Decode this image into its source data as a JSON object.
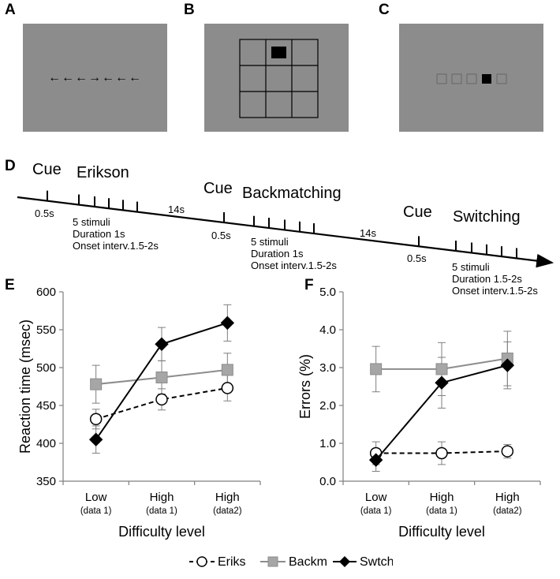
{
  "panels": {
    "A": "A",
    "B": "B",
    "C": "C",
    "D": "D",
    "E": "E",
    "F": "F"
  },
  "panelA": {
    "arrows": "←←←→←←←"
  },
  "colors": {
    "screen_gray": "#8c8c8c",
    "backm_gray": "#a6a6a6",
    "backm_line": "#8c8c8c"
  },
  "timeline": {
    "cue": "Cue",
    "tasks": [
      "Erikson",
      "Backmatching",
      "Switching"
    ],
    "cue_time": "0.5s",
    "gap": "14s",
    "blocks": [
      {
        "lines": [
          "5 stimuli",
          "Duration 1s",
          "Onset interv.1.5-2s"
        ]
      },
      {
        "lines": [
          "5 stimuli",
          "Duration 1s",
          "Onset interv.1.5-2s"
        ]
      },
      {
        "lines": [
          "5 stimuli",
          "Duration 1.5-2s",
          "Onset interv.1.5-2s"
        ]
      }
    ]
  },
  "legend": [
    {
      "name": "Eriks",
      "marker": "circle",
      "style": "dashed"
    },
    {
      "name": "Backm",
      "marker": "square",
      "style": "solid"
    },
    {
      "name": "Swtch",
      "marker": "diamond",
      "style": "solid"
    }
  ],
  "chart_data": [
    {
      "type": "line",
      "panel": "E",
      "categories": [
        [
          "Low",
          "(data 1)"
        ],
        [
          "High",
          "(data 1)"
        ],
        [
          "High",
          "(data2)"
        ]
      ],
      "xlabel": "Difficulty level",
      "ylabel": "Reaction time (msec)",
      "ylim": [
        350,
        600
      ],
      "yticks": [
        "350",
        "400",
        "450",
        "500",
        "550",
        "600"
      ],
      "series": [
        {
          "name": "Eriks",
          "values": [
            432,
            458,
            473
          ],
          "errors": [
            13,
            14,
            17
          ]
        },
        {
          "name": "Backm",
          "values": [
            478,
            487,
            497
          ],
          "errors": [
            25,
            22,
            22
          ]
        },
        {
          "name": "Swtch",
          "values": [
            405,
            531,
            559
          ],
          "errors": [
            18,
            22,
            24
          ]
        }
      ]
    },
    {
      "type": "line",
      "panel": "F",
      "categories": [
        [
          "Low",
          "(data 1)"
        ],
        [
          "High",
          "(data 1)"
        ],
        [
          "High",
          "(data2)"
        ]
      ],
      "xlabel": "Difficulty level",
      "ylabel": "Errors (%)",
      "ylim": [
        0,
        5
      ],
      "yticks": [
        "0.0",
        "1.0",
        "2.0",
        "3.0",
        "4.0",
        "5.0"
      ],
      "series": [
        {
          "name": "Eriks",
          "values": [
            0.74,
            0.74,
            0.79
          ],
          "errors": [
            0.3,
            0.3,
            0.18
          ]
        },
        {
          "name": "Backm",
          "values": [
            2.96,
            2.96,
            3.24
          ],
          "errors": [
            0.6,
            0.7,
            0.72
          ]
        },
        {
          "name": "Swtch",
          "values": [
            0.56,
            2.6,
            3.06
          ],
          "errors": [
            0.3,
            0.67,
            0.62
          ]
        }
      ]
    }
  ]
}
